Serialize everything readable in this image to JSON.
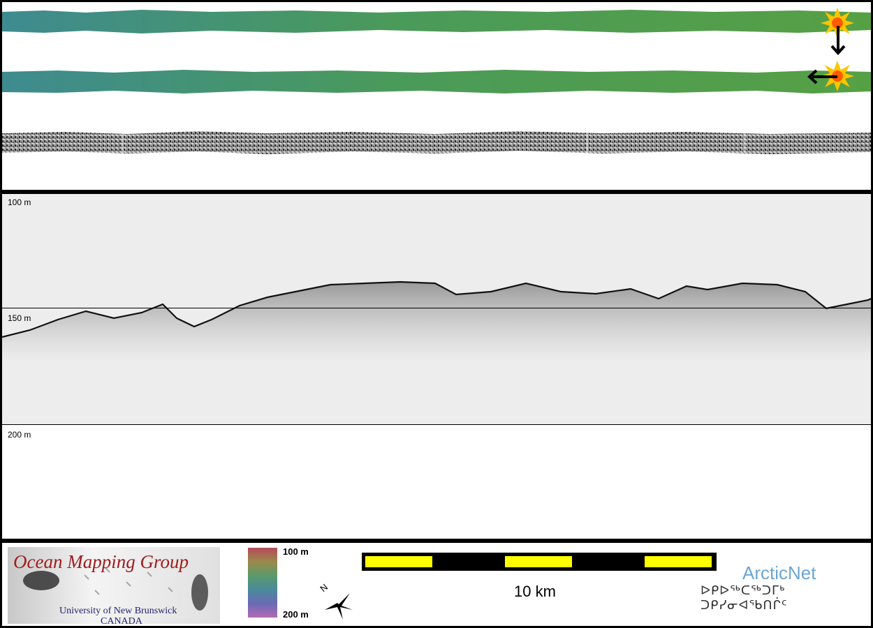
{
  "profile": {
    "depth_labels": [
      "100 m",
      "150 m",
      "200 m"
    ]
  },
  "footer": {
    "logo": {
      "title": "Ocean Mapping Group",
      "university": "University of New Brunswick",
      "country": "CANADA"
    },
    "colorbar": {
      "top_label": "100 m",
      "bottom_label": "200 m"
    },
    "scale": {
      "label": "10 km"
    },
    "arcticnet": {
      "name": "ArcticNet",
      "syllabics": "ᐅᑭᐅᖅᑕᖅᑐᒥᒃ ᑐᑭᓯᓂᐊᖃᑎᒌᑦ"
    }
  },
  "colors": {
    "bathymetry_left": "#3f8a8c",
    "bathymetry_right": "#4f9a3a",
    "backscatter": "#4a4a4a",
    "profile_bg": "#ededed",
    "scale_yellow": "#ffff00",
    "omg_red": "#a01c1c",
    "arcticnet_blue": "#6aa6d4"
  },
  "icons": [
    "sun-icon",
    "down-arrow-icon",
    "left-arrow-icon",
    "north-arrow-icon"
  ]
}
